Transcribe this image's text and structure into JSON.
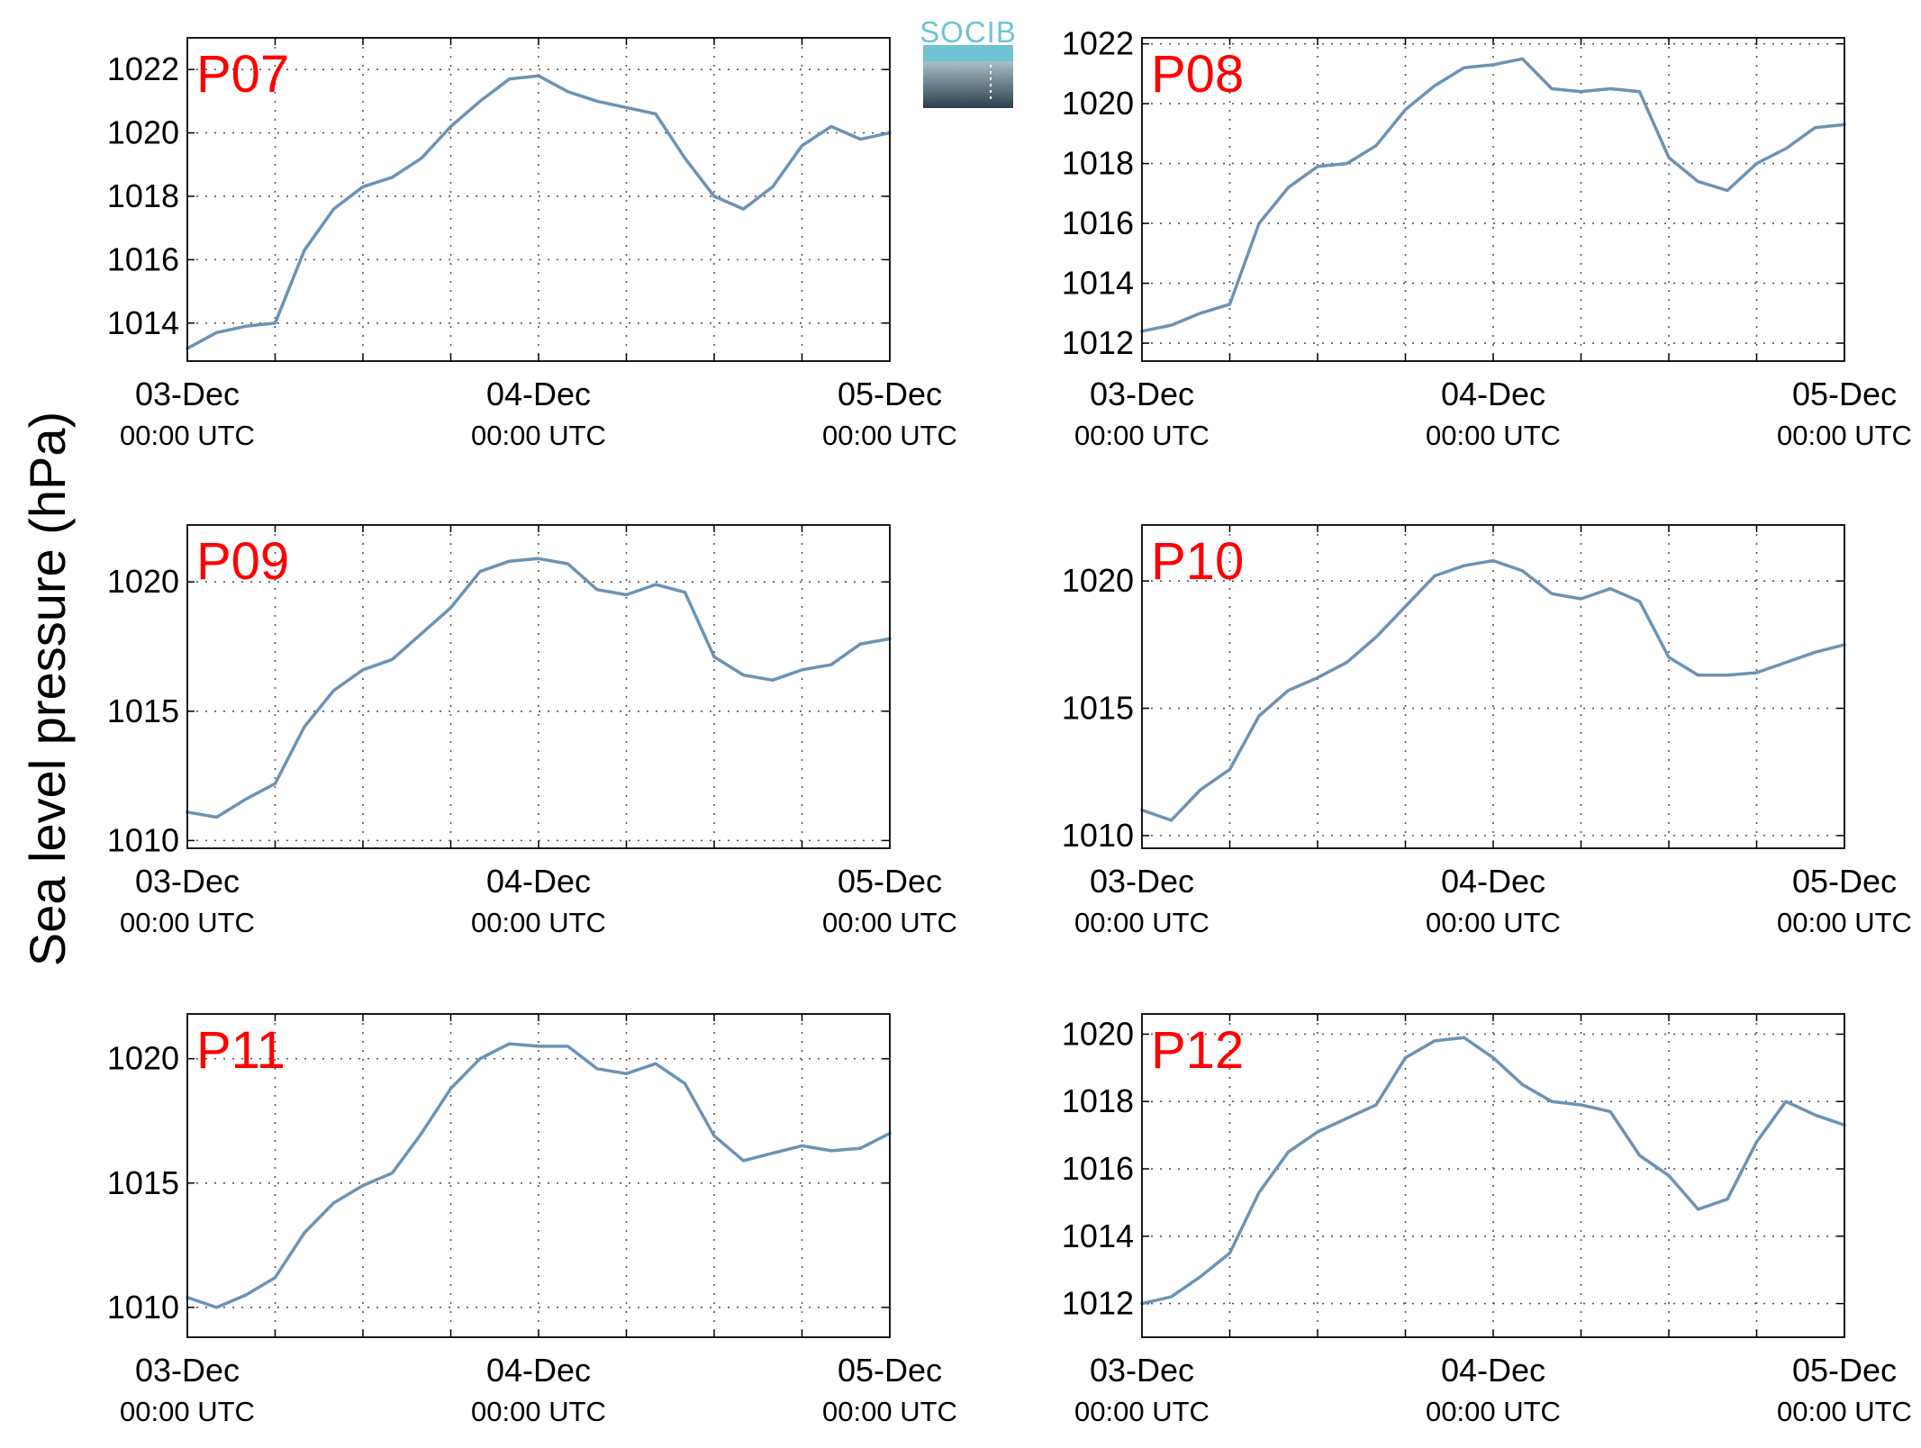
{
  "ylabel": "Sea level pressure (hPa)",
  "logo": {
    "text": "SOCIB"
  },
  "colors": {
    "line": "#6b93b5",
    "panel_label": "#ff0000",
    "grid": "#555555"
  },
  "x_tick_labels": [
    {
      "date": "03-Dec",
      "time": "00:00 UTC"
    },
    {
      "date": "04-Dec",
      "time": "00:00 UTC"
    },
    {
      "date": "05-Dec",
      "time": "00:00 UTC"
    }
  ],
  "chart_data": [
    {
      "type": "line",
      "title": "P07",
      "xlim": [
        "2015-12-03T00:00Z",
        "2015-12-05T00:00Z"
      ],
      "ylim": [
        1012.8,
        1023.0
      ],
      "yticks": [
        1014,
        1016,
        1018,
        1020,
        1022
      ],
      "grid": true,
      "x_hours": [
        0,
        2,
        4,
        6,
        8,
        10,
        12,
        14,
        16,
        18,
        20,
        22,
        24,
        26,
        28,
        30,
        32,
        34,
        36,
        38,
        40,
        42,
        44,
        46,
        48
      ],
      "values": [
        1013.2,
        1013.7,
        1013.9,
        1014.0,
        1016.3,
        1017.6,
        1018.3,
        1018.6,
        1019.2,
        1020.2,
        1021.0,
        1021.7,
        1021.8,
        1021.3,
        1021.0,
        1020.8,
        1020.6,
        1019.2,
        1018.0,
        1017.6,
        1018.3,
        1019.6,
        1020.2,
        1019.8,
        1020.0
      ]
    },
    {
      "type": "line",
      "title": "P08",
      "xlim": [
        "2015-12-03T00:00Z",
        "2015-12-05T00:00Z"
      ],
      "ylim": [
        1011.4,
        1022.2
      ],
      "yticks": [
        1012,
        1014,
        1016,
        1018,
        1020,
        1022
      ],
      "grid": true,
      "x_hours": [
        0,
        2,
        4,
        6,
        8,
        10,
        12,
        14,
        16,
        18,
        20,
        22,
        24,
        26,
        28,
        30,
        32,
        34,
        36,
        38,
        40,
        42,
        44,
        46,
        48
      ],
      "values": [
        1012.4,
        1012.6,
        1013.0,
        1013.3,
        1016.0,
        1017.2,
        1017.9,
        1018.0,
        1018.6,
        1019.8,
        1020.6,
        1021.2,
        1021.3,
        1021.5,
        1020.5,
        1020.4,
        1020.5,
        1020.4,
        1018.2,
        1017.4,
        1017.1,
        1018.0,
        1018.5,
        1019.2,
        1019.3
      ]
    },
    {
      "type": "line",
      "title": "P09",
      "xlim": [
        "2015-12-03T00:00Z",
        "2015-12-05T00:00Z"
      ],
      "ylim": [
        1009.7,
        1022.2
      ],
      "yticks": [
        1010,
        1015,
        1020
      ],
      "grid": true,
      "x_hours": [
        0,
        2,
        4,
        6,
        8,
        10,
        12,
        14,
        16,
        18,
        20,
        22,
        24,
        26,
        28,
        30,
        32,
        34,
        36,
        38,
        40,
        42,
        44,
        46,
        48
      ],
      "values": [
        1011.1,
        1010.9,
        1011.6,
        1012.2,
        1014.4,
        1015.8,
        1016.6,
        1017.0,
        1018.0,
        1019.0,
        1020.4,
        1020.8,
        1020.9,
        1020.7,
        1019.7,
        1019.5,
        1019.9,
        1019.6,
        1017.1,
        1016.4,
        1016.2,
        1016.6,
        1016.8,
        1017.6,
        1017.8
      ]
    },
    {
      "type": "line",
      "title": "P10",
      "xlim": [
        "2015-12-03T00:00Z",
        "2015-12-05T00:00Z"
      ],
      "ylim": [
        1009.5,
        1022.2
      ],
      "yticks": [
        1010,
        1015,
        1020
      ],
      "grid": true,
      "x_hours": [
        0,
        2,
        4,
        6,
        8,
        10,
        12,
        14,
        16,
        18,
        20,
        22,
        24,
        26,
        28,
        30,
        32,
        34,
        36,
        38,
        40,
        42,
        44,
        46,
        48
      ],
      "values": [
        1011.0,
        1010.6,
        1011.8,
        1012.6,
        1014.7,
        1015.7,
        1016.2,
        1016.8,
        1017.8,
        1019.0,
        1020.2,
        1020.6,
        1020.8,
        1020.4,
        1019.5,
        1019.3,
        1019.7,
        1019.2,
        1017.0,
        1016.3,
        1016.3,
        1016.4,
        1016.8,
        1017.2,
        1017.5
      ]
    },
    {
      "type": "line",
      "title": "P11",
      "xlim": [
        "2015-12-03T00:00Z",
        "2015-12-05T00:00Z"
      ],
      "ylim": [
        1008.8,
        1021.8
      ],
      "yticks": [
        1010,
        1015,
        1020
      ],
      "grid": true,
      "x_hours": [
        0,
        2,
        4,
        6,
        8,
        10,
        12,
        14,
        16,
        18,
        20,
        22,
        24,
        26,
        28,
        30,
        32,
        34,
        36,
        38,
        40,
        42,
        44,
        46,
        48
      ],
      "values": [
        1010.4,
        1010.0,
        1010.5,
        1011.2,
        1013.0,
        1014.2,
        1014.9,
        1015.4,
        1017.0,
        1018.8,
        1020.0,
        1020.6,
        1020.5,
        1020.5,
        1019.6,
        1019.4,
        1019.8,
        1019.0,
        1016.9,
        1015.9,
        1016.2,
        1016.5,
        1016.3,
        1016.4,
        1017.0
      ]
    },
    {
      "type": "line",
      "title": "P12",
      "xlim": [
        "2015-12-03T00:00Z",
        "2015-12-05T00:00Z"
      ],
      "ylim": [
        1011.0,
        1020.6
      ],
      "yticks": [
        1012,
        1014,
        1016,
        1018,
        1020
      ],
      "grid": true,
      "x_hours": [
        0,
        2,
        4,
        6,
        8,
        10,
        12,
        14,
        16,
        18,
        20,
        22,
        24,
        26,
        28,
        30,
        32,
        34,
        36,
        38,
        40,
        42,
        44,
        46,
        48
      ],
      "values": [
        1012.0,
        1012.2,
        1012.8,
        1013.5,
        1015.3,
        1016.5,
        1017.1,
        1017.5,
        1017.9,
        1019.3,
        1019.8,
        1019.9,
        1019.3,
        1018.5,
        1018.0,
        1017.9,
        1017.7,
        1016.4,
        1015.8,
        1014.8,
        1015.1,
        1016.8,
        1018.0,
        1017.6,
        1017.3
      ]
    }
  ]
}
